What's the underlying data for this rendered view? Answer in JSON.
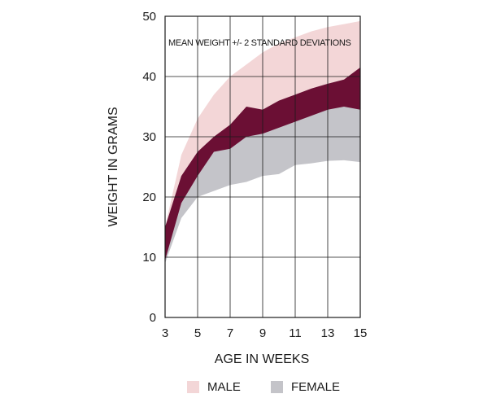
{
  "chart_data": {
    "type": "area",
    "annotation": "MEAN WEIGHT +/- 2 STANDARD DEVIATIONS",
    "xlabel": "AGE IN WEEKS",
    "ylabel": "WEIGHT IN GRAMS",
    "xlim": [
      3,
      15
    ],
    "ylim": [
      0,
      50
    ],
    "xticks": [
      3,
      5,
      7,
      9,
      11,
      13,
      15
    ],
    "yticks": [
      0,
      10,
      20,
      30,
      40,
      50
    ],
    "grid": true,
    "x": [
      3,
      4,
      5,
      6,
      7,
      8,
      9,
      10,
      11,
      12,
      13,
      14,
      15
    ],
    "series": [
      {
        "name": "MALE",
        "color": "#f3d6d7",
        "upper": [
          15,
          27,
          33,
          37,
          40,
          42,
          44,
          45.5,
          46.5,
          47.5,
          48.2,
          48.7,
          49.2
        ],
        "lower": [
          9.5,
          19,
          23.5,
          27.5,
          28,
          30,
          30.5,
          31.5,
          32.5,
          33.5,
          34.5,
          35,
          34.5
        ]
      },
      {
        "name": "FEMALE",
        "color": "#c4c4c9",
        "upper": [
          15,
          23.5,
          27.5,
          30,
          32,
          35,
          34.5,
          36,
          37,
          38,
          38.8,
          39.5,
          41.5
        ],
        "lower": [
          9,
          16.5,
          20,
          21,
          22,
          22.5,
          23.5,
          23.8,
          25.3,
          25.6,
          26,
          26.1,
          25.8
        ]
      }
    ],
    "overlap_color": "#6b0f34",
    "legend": [
      "MALE",
      "FEMALE"
    ]
  }
}
